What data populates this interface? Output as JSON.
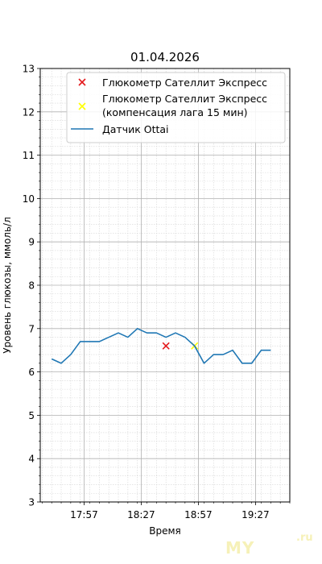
{
  "chart_data": {
    "type": "line",
    "title": "01.04.2026",
    "xlabel": "Время",
    "ylabel": "Уровень глюкозы, ммоль/л",
    "ylim": [
      3,
      13
    ],
    "yticks": [
      3,
      4,
      5,
      6,
      7,
      8,
      9,
      10,
      11,
      12,
      13
    ],
    "xlim": [
      "17:34",
      "19:45"
    ],
    "xticks": [
      "17:57",
      "18:27",
      "18:57",
      "19:27"
    ],
    "grid": true,
    "legend_position": "top-right",
    "series": [
      {
        "name": "Глюкометр Сателлит Экспресс",
        "type": "scatter",
        "marker": "x",
        "color": "#e41a1c",
        "points": [
          {
            "x": "18:40",
            "y": 6.6
          }
        ]
      },
      {
        "name": "Глюкометр Сателлит Экспресс\n(компенсация лага 15 мин)",
        "type": "scatter",
        "marker": "x",
        "color": "#ffff00",
        "points": [
          {
            "x": "18:55",
            "y": 6.6
          }
        ]
      },
      {
        "name": "Датчик Ottai",
        "type": "line",
        "color": "#1f77b4",
        "points": [
          {
            "x": "17:40",
            "y": 6.3
          },
          {
            "x": "17:45",
            "y": 6.2
          },
          {
            "x": "17:50",
            "y": 6.4
          },
          {
            "x": "17:55",
            "y": 6.7
          },
          {
            "x": "18:00",
            "y": 6.7
          },
          {
            "x": "18:05",
            "y": 6.7
          },
          {
            "x": "18:10",
            "y": 6.8
          },
          {
            "x": "18:15",
            "y": 6.9
          },
          {
            "x": "18:20",
            "y": 6.8
          },
          {
            "x": "18:25",
            "y": 7.0
          },
          {
            "x": "18:30",
            "y": 6.9
          },
          {
            "x": "18:35",
            "y": 6.9
          },
          {
            "x": "18:40",
            "y": 6.8
          },
          {
            "x": "18:45",
            "y": 6.9
          },
          {
            "x": "18:50",
            "y": 6.8
          },
          {
            "x": "18:55",
            "y": 6.6
          },
          {
            "x": "19:00",
            "y": 6.2
          },
          {
            "x": "19:05",
            "y": 6.4
          },
          {
            "x": "19:10",
            "y": 6.4
          },
          {
            "x": "19:15",
            "y": 6.5
          },
          {
            "x": "19:20",
            "y": 6.2
          },
          {
            "x": "19:25",
            "y": 6.2
          },
          {
            "x": "19:30",
            "y": 6.5
          },
          {
            "x": "19:35",
            "y": 6.5
          }
        ]
      }
    ]
  },
  "watermark": {
    "text": "MY",
    "suffix": ".ru"
  }
}
